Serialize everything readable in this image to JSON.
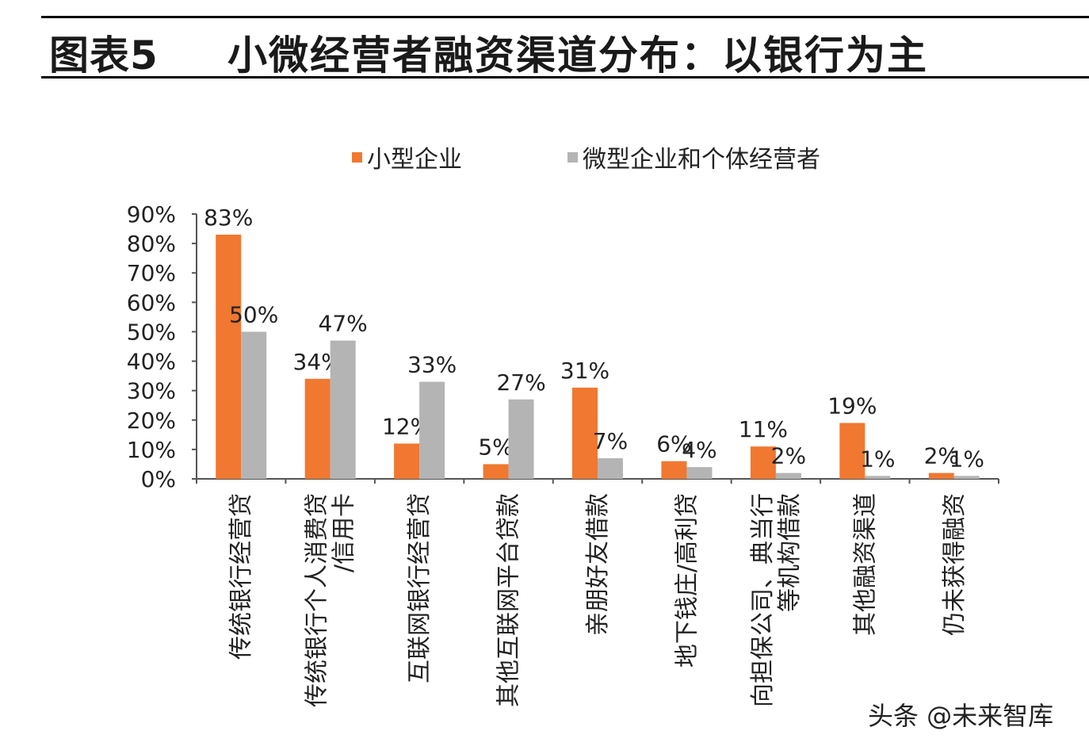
{
  "header": {
    "figure_label": "图表5",
    "title": "小微经营者融资渠道分布：以银行为主"
  },
  "watermark": "头条 @未来智库",
  "colors": {
    "small": "#F07830",
    "micro": "#B4B4B4",
    "axis": "#555555"
  },
  "chart_data": {
    "type": "bar",
    "title": "",
    "xlabel": "",
    "ylabel": "",
    "ylim": [
      0,
      90
    ],
    "y_ticks": [
      "0%",
      "10%",
      "20%",
      "30%",
      "40%",
      "50%",
      "60%",
      "70%",
      "80%",
      "90%"
    ],
    "legend_position": "top",
    "grid": false,
    "categories": [
      "传统银行经营贷",
      "传统银行个人消费贷/信用卡",
      "互联网银行经营贷",
      "其他互联网平台贷款",
      "亲朋好友借款",
      "地下钱庄/高利贷",
      "向担保公司、典当行等机构借款",
      "其他融资渠道",
      "仍未获得融资"
    ],
    "category_lines": [
      [
        "传统银行经营贷"
      ],
      [
        "传统银行个人消费贷",
        "/信用卡"
      ],
      [
        "互联网银行经营贷"
      ],
      [
        "其他互联网平台贷款"
      ],
      [
        "亲朋好友借款"
      ],
      [
        "地下钱庄/高利贷"
      ],
      [
        "向担保公司、典当行",
        "等机构借款"
      ],
      [
        "其他融资渠道"
      ],
      [
        "仍未获得融资"
      ]
    ],
    "series": [
      {
        "name": "小型企业",
        "values": [
          83,
          34,
          12,
          5,
          31,
          6,
          11,
          19,
          2
        ],
        "labels": [
          "83%",
          "34%",
          "12%",
          "5%",
          "31%",
          "6%",
          "11%",
          "19%",
          "2%"
        ]
      },
      {
        "name": "微型企业和个体经营者",
        "values": [
          50,
          47,
          33,
          27,
          7,
          4,
          2,
          1,
          1
        ],
        "labels": [
          "50%",
          "47%",
          "33%",
          "27%",
          "7%",
          "4%",
          "2%",
          "1%",
          "1%"
        ]
      }
    ]
  }
}
